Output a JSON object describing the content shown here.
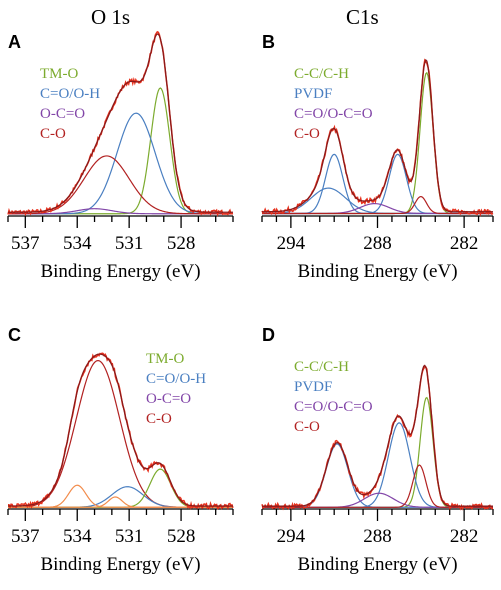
{
  "titles": {
    "o1s": "O 1s",
    "c1s": "C1s"
  },
  "colors": {
    "measured": "#e8321e",
    "fit_total": "#8b1a1a",
    "tm_o": "#7cab2e",
    "c_eq_o_o_h": "#4a7fc1",
    "o_c_eq_o": "#8246a8",
    "c_o": "#b22222",
    "extra": "#f28c4c"
  },
  "chart_data": [
    {
      "panel": "A",
      "type": "line",
      "xlabel": "Binding Energy (eV)",
      "xlim": [
        538,
        525
      ],
      "xticks": [
        537,
        534,
        531,
        528
      ],
      "legend_position": "top-left",
      "legend": [
        {
          "label": "TM-O",
          "color": "#7cab2e"
        },
        {
          "label": "C=O/O-H",
          "color": "#4a7fc1"
        },
        {
          "label": "O-C=O",
          "color": "#8246a8"
        },
        {
          "label": "C-O",
          "color": "#b22222"
        }
      ],
      "components": [
        {
          "name": "TM-O",
          "center": 529.2,
          "amplitude": 1.0,
          "width": 0.55,
          "color": "#7cab2e"
        },
        {
          "name": "C=O/O-H",
          "center": 530.6,
          "amplitude": 0.8,
          "width": 1.1,
          "color": "#4a7fc1"
        },
        {
          "name": "O-C=O",
          "center": 533.0,
          "amplitude": 0.04,
          "width": 1.0,
          "color": "#8246a8"
        },
        {
          "name": "C-O",
          "center": 532.3,
          "amplitude": 0.46,
          "width": 1.3,
          "color": "#b22222"
        }
      ],
      "baseline": 0.03,
      "ylim": [
        0,
        1.4
      ]
    },
    {
      "panel": "B",
      "type": "line",
      "xlabel": "Binding Energy (eV)",
      "xlim": [
        296,
        280
      ],
      "xticks": [
        294,
        288,
        282
      ],
      "legend_position": "top-left",
      "legend": [
        {
          "label": "C-C/C-H",
          "color": "#7cab2e"
        },
        {
          "label": "PVDF",
          "color": "#4a7fc1"
        },
        {
          "label": "C=O/O-C=O",
          "color": "#8246a8"
        },
        {
          "label": "C-O",
          "color": "#b22222"
        }
      ],
      "components": [
        {
          "name": "C-C/C-H",
          "center": 284.6,
          "amplitude": 1.0,
          "width": 0.45,
          "color": "#7cab2e"
        },
        {
          "name": "PVDF",
          "center": 291.0,
          "amplitude": 0.42,
          "width": 0.6,
          "color": "#4a7fc1"
        },
        {
          "name": "PVDF",
          "center": 286.6,
          "amplitude": 0.42,
          "width": 0.6,
          "color": "#4a7fc1"
        },
        {
          "name": "PVDF",
          "center": 291.4,
          "amplitude": 0.18,
          "width": 1.2,
          "color": "#4a7fc1"
        },
        {
          "name": "C=O/O-C=O",
          "center": 288.2,
          "amplitude": 0.07,
          "width": 1.0,
          "color": "#8246a8"
        },
        {
          "name": "C-O",
          "center": 285.0,
          "amplitude": 0.12,
          "width": 0.4,
          "color": "#b22222"
        }
      ],
      "baseline": 0.03,
      "ylim": [
        0,
        1.25
      ]
    },
    {
      "panel": "C",
      "type": "line",
      "xlabel": "Binding Energy (eV)",
      "xlim": [
        538,
        525
      ],
      "xticks": [
        537,
        534,
        531,
        528
      ],
      "legend_position": "top-right",
      "legend": [
        {
          "label": "TM-O",
          "color": "#7cab2e"
        },
        {
          "label": "C=O/O-H",
          "color": "#4a7fc1"
        },
        {
          "label": "O-C=O",
          "color": "#8246a8"
        },
        {
          "label": "C-O",
          "color": "#b22222"
        }
      ],
      "components": [
        {
          "name": "C-O",
          "center": 532.8,
          "amplitude": 1.0,
          "width": 1.25,
          "color": "#b22222"
        },
        {
          "name": "C=O/O-H",
          "center": 531.1,
          "amplitude": 0.14,
          "width": 0.9,
          "color": "#4a7fc1"
        },
        {
          "name": "TM-O",
          "center": 529.2,
          "amplitude": 0.26,
          "width": 0.6,
          "color": "#7cab2e"
        },
        {
          "name": "extra",
          "center": 534.0,
          "amplitude": 0.15,
          "width": 0.5,
          "color": "#f28c4c"
        },
        {
          "name": "extra",
          "center": 531.8,
          "amplitude": 0.07,
          "width": 0.4,
          "color": "#f28c4c"
        }
      ],
      "baseline": 0.02,
      "ylim": [
        0,
        1.2
      ]
    },
    {
      "panel": "D",
      "type": "line",
      "xlabel": "Binding Energy (eV)",
      "xlim": [
        296,
        280
      ],
      "xticks": [
        294,
        288,
        282
      ],
      "legend_position": "top-left",
      "legend": [
        {
          "label": "C-C/C-H",
          "color": "#7cab2e"
        },
        {
          "label": "PVDF",
          "color": "#4a7fc1"
        },
        {
          "label": "C=O/O-C=O",
          "color": "#8246a8"
        },
        {
          "label": "C-O",
          "color": "#b22222"
        }
      ],
      "components": [
        {
          "name": "C-C/C-H",
          "center": 284.6,
          "amplitude": 0.78,
          "width": 0.45,
          "color": "#7cab2e"
        },
        {
          "name": "PVDF",
          "center": 290.8,
          "amplitude": 0.45,
          "width": 0.75,
          "color": "#4a7fc1"
        },
        {
          "name": "PVDF",
          "center": 286.5,
          "amplitude": 0.6,
          "width": 0.75,
          "color": "#4a7fc1"
        },
        {
          "name": "C=O/O-C=O",
          "center": 287.9,
          "amplitude": 0.1,
          "width": 1.0,
          "color": "#8246a8"
        },
        {
          "name": "C-O",
          "center": 285.1,
          "amplitude": 0.3,
          "width": 0.45,
          "color": "#b22222"
        }
      ],
      "baseline": 0.02,
      "ylim": [
        0,
        1.25
      ]
    }
  ]
}
